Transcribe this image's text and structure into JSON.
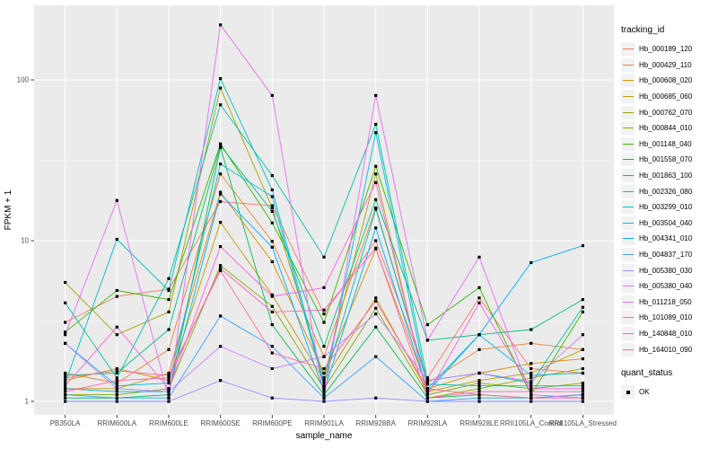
{
  "chart": {
    "y_axis": {
      "title": "FPKM + 1",
      "tick_labels": [
        "1",
        "10",
        "100"
      ]
    },
    "x_axis": {
      "title": "sample_name"
    },
    "legend": {
      "tracking_title": "tracking_id",
      "quant_title": "quant_status",
      "quant_ok_label": "OK"
    }
  },
  "chart_data": {
    "type": "line",
    "title": "",
    "xlabel": "sample_name",
    "ylabel": "FPKM + 1",
    "y_scale": "log10",
    "ylim": [
      1,
      250
    ],
    "y_ticks": [
      1,
      10,
      100
    ],
    "y_minor_gridlines": [
      3.162,
      31.62
    ],
    "grid": true,
    "panel_background": "#EBEBEB",
    "gridline_color": "#FFFFFF",
    "point_style": "small filled black square (quant_status = OK)",
    "legend_position": "right",
    "categories": [
      "PB350LA",
      "RRIM600LA",
      "RRIM600LE",
      "RRIM600SE",
      "RRIM600PE",
      "RRIM901LA",
      "RRIM928BA",
      "RRIM928LA",
      "RRIM928LE",
      "RRII105LA_Control",
      "RRII105LA_Stressed"
    ],
    "series": [
      {
        "name": "Hb_000189_120",
        "color": "#F8766D",
        "values": [
          3.1,
          4.5,
          5.0,
          17.5,
          16.5,
          3.5,
          10.0,
          1.4,
          4.4,
          1.6,
          1.5
        ]
      },
      {
        "name": "Hb_000429_110",
        "color": "#EA8331",
        "values": [
          1.5,
          1.3,
          2.1,
          26,
          9.9,
          1.9,
          16,
          1.3,
          2.1,
          2.3,
          2.1
        ]
      },
      {
        "name": "Hb_000608_020",
        "color": "#D89000",
        "values": [
          1.2,
          1.2,
          1.5,
          20,
          7.4,
          1.5,
          8.9,
          1.2,
          1.5,
          1.72,
          1.84
        ]
      },
      {
        "name": "Hb_000685_060",
        "color": "#C09B00",
        "values": [
          1.35,
          1.6,
          1.35,
          13,
          4.6,
          1.35,
          4.4,
          1.15,
          1.35,
          1.5,
          2.1
        ]
      },
      {
        "name": "Hb_000762_070",
        "color": "#A3A500",
        "values": [
          5.5,
          2.6,
          3.6,
          89,
          16,
          1.4,
          26,
          1.05,
          1.2,
          1.4,
          1.6
        ]
      },
      {
        "name": "Hb_000844_010",
        "color": "#7CAE00",
        "values": [
          1.1,
          1.1,
          1.2,
          7.0,
          3.9,
          1.2,
          3.8,
          1.1,
          1.3,
          1.2,
          1.3
        ]
      },
      {
        "name": "Hb_001148_040",
        "color": "#39B600",
        "values": [
          2.7,
          4.9,
          4.3,
          40,
          12.9,
          3.1,
          29,
          3.0,
          5.1,
          1.1,
          3.6
        ]
      },
      {
        "name": "Hb_001558_070",
        "color": "#00BB4E",
        "values": [
          1.05,
          1.05,
          1.1,
          38,
          3.0,
          1.1,
          2.9,
          1.05,
          1.1,
          1.05,
          1.1
        ]
      },
      {
        "name": "Hb_001863_100",
        "color": "#00BF7D",
        "values": [
          1.45,
          1.5,
          2.8,
          39,
          15.2,
          2.2,
          18,
          2.4,
          2.6,
          2.8,
          4.3
        ]
      },
      {
        "name": "Hb_002326_080",
        "color": "#00C1A3",
        "values": [
          4.1,
          1.4,
          5.8,
          70,
          25.4,
          7.9,
          53,
          1.35,
          1.5,
          1.3,
          3.85
        ]
      },
      {
        "name": "Hb_003299_010",
        "color": "#00BFC4",
        "values": [
          1.3,
          10.2,
          4.9,
          102,
          20.7,
          1.3,
          15.7,
          1.28,
          1.25,
          1.25,
          1.25
        ]
      },
      {
        "name": "Hb_003504_040",
        "color": "#00BAE0",
        "values": [
          2.3,
          1.25,
          1.3,
          30,
          18.8,
          1.25,
          47,
          1.2,
          2.6,
          1.45,
          1.5
        ]
      },
      {
        "name": "Hb_004341_010",
        "color": "#00B0F6",
        "values": [
          1.2,
          1.15,
          1.15,
          19.5,
          9.1,
          1.15,
          12,
          1.15,
          2.6,
          7.3,
          9.3
        ]
      },
      {
        "name": "Hb_004837_170",
        "color": "#35A2FF",
        "values": [
          1.1,
          1.05,
          1.05,
          3.4,
          2.2,
          1.05,
          1.9,
          1.0,
          1.05,
          1.05,
          1.1
        ]
      },
      {
        "name": "Hb_005380_030",
        "color": "#9590FF",
        "values": [
          1.0,
          1.0,
          1.0,
          1.35,
          1.05,
          1.0,
          1.05,
          1.0,
          1.0,
          1.0,
          1.0
        ]
      },
      {
        "name": "Hb_005380_040",
        "color": "#C77CFF",
        "values": [
          2.3,
          1.2,
          1.15,
          2.2,
          1.6,
          1.9,
          3.5,
          1.35,
          1.5,
          1.33,
          2.6
        ]
      },
      {
        "name": "Hb_011218_050",
        "color": "#E76BF3",
        "values": [
          2.6,
          17.8,
          1.05,
          220,
          80,
          1.05,
          80,
          2.4,
          7.9,
          1.1,
          1.05
        ]
      },
      {
        "name": "Hb_101089_010",
        "color": "#FA62DB",
        "values": [
          1.25,
          2.9,
          1.2,
          9.2,
          4.5,
          5.1,
          23,
          1.1,
          4.1,
          1.2,
          1.2
        ]
      },
      {
        "name": "Hb_140848_010",
        "color": "#FF62BC",
        "values": [
          1.15,
          1.35,
          1.4,
          6.7,
          3.6,
          3.7,
          9.0,
          1.05,
          1.15,
          1.15,
          1.15
        ]
      },
      {
        "name": "Hb_164010_090",
        "color": "#FF6A98",
        "values": [
          1.4,
          1.55,
          1.45,
          6.5,
          2.0,
          1.6,
          4.2,
          1.2,
          1.1,
          1.05,
          1.05
        ]
      }
    ],
    "quant_status_series": [
      {
        "label": "OK",
        "marker_color": "#000000"
      }
    ]
  }
}
